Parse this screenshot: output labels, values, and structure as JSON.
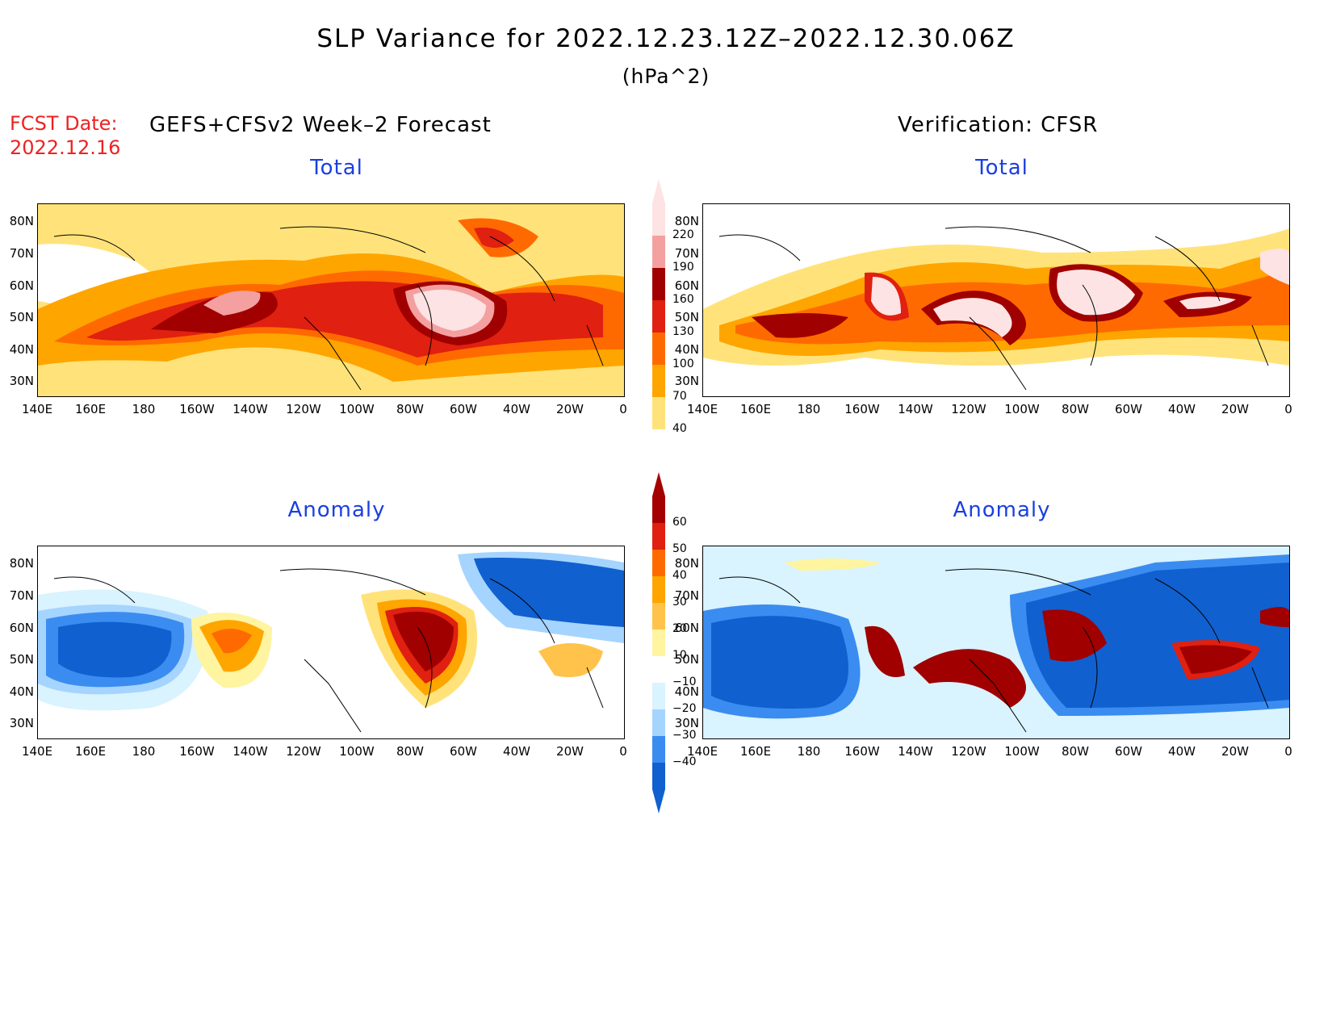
{
  "title": "SLP Variance for 2022.12.23.12Z–2022.12.30.06Z",
  "units": "(hPa^2)",
  "fcst_date": {
    "label": "FCST Date:",
    "value": "2022.12.16"
  },
  "left_header": "GEFS+CFSv2 Week–2 Forecast",
  "right_header": "Verification: CFSR",
  "panels": [
    {
      "id": "forecast-total",
      "label": "Total"
    },
    {
      "id": "verification-total",
      "label": "Total"
    },
    {
      "id": "forecast-anomaly",
      "label": "Anomaly"
    },
    {
      "id": "verification-anomaly",
      "label": "Anomaly"
    }
  ],
  "lat_labels": [
    "80N",
    "70N",
    "60N",
    "50N",
    "40N",
    "30N"
  ],
  "lon_labels": [
    "140E",
    "160E",
    "180",
    "160W",
    "140W",
    "120W",
    "100W",
    "80W",
    "60W",
    "40W",
    "20W",
    "0"
  ],
  "total_colorbar": {
    "levels": [
      "220",
      "190",
      "160",
      "130",
      "100",
      "70",
      "40"
    ],
    "colors": [
      "#fde3e3",
      "#f4a0a0",
      "#a00000",
      "#e02010",
      "#ff6a00",
      "#ffa500",
      "#ffe37a"
    ]
  },
  "anomaly_colorbar": {
    "levels": [
      "60",
      "50",
      "40",
      "30",
      "20",
      "10",
      "−10",
      "−20",
      "−30",
      "−40"
    ],
    "colors": [
      "#a50000",
      "#e02010",
      "#ff6a00",
      "#ffa500",
      "#ffc24a",
      "#fff4a0",
      "#ffffff",
      "#d9f3ff",
      "#a5d4ff",
      "#3a8cf0",
      "#1060d0"
    ]
  }
}
